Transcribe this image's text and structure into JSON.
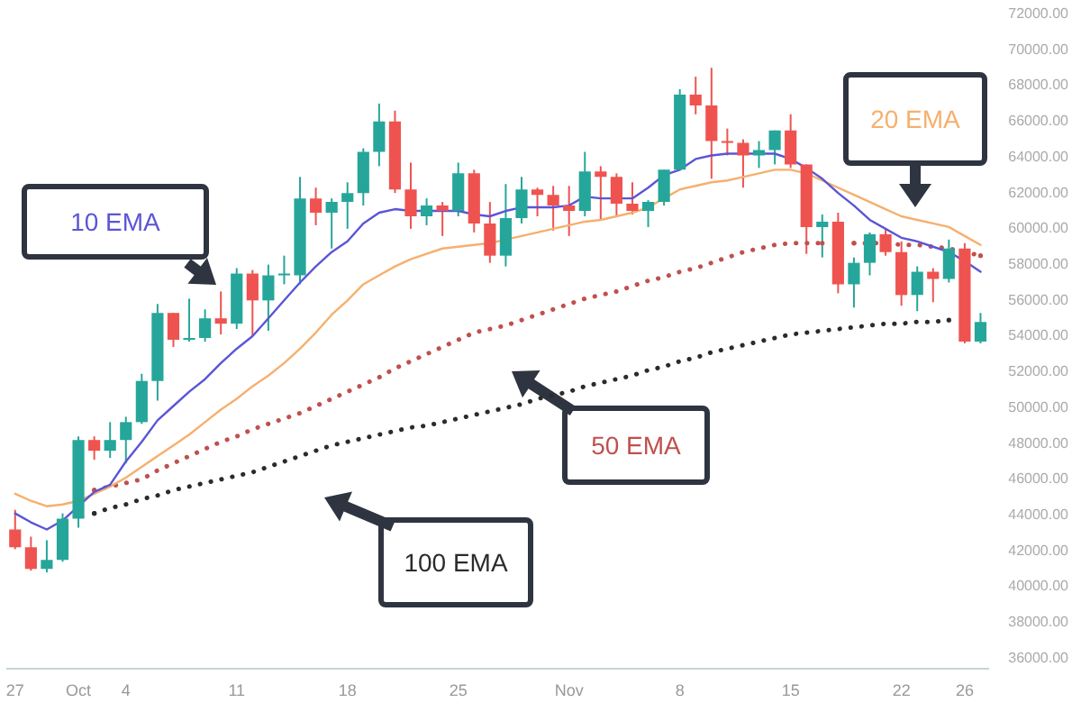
{
  "chart_data": {
    "type": "candlestick",
    "categories": [
      "27",
      null,
      null,
      null,
      "Oct",
      null,
      null,
      "4",
      null,
      null,
      null,
      null,
      null,
      null,
      "11",
      null,
      null,
      null,
      null,
      null,
      null,
      "18",
      null,
      null,
      null,
      null,
      null,
      null,
      "25",
      null,
      null,
      null,
      null,
      null,
      null,
      "Nov",
      null,
      null,
      null,
      null,
      null,
      null,
      "8",
      null,
      null,
      null,
      null,
      null,
      null,
      "15",
      null,
      null,
      null,
      null,
      null,
      null,
      "22",
      null,
      null,
      null,
      "26",
      null
    ],
    "ohlc": [
      [
        43200,
        44300,
        42100,
        42200
      ],
      [
        42200,
        42800,
        40900,
        41000
      ],
      [
        41000,
        42600,
        40800,
        41500
      ],
      [
        41500,
        44100,
        41400,
        43800
      ],
      [
        43800,
        48400,
        43300,
        48200
      ],
      [
        48200,
        48400,
        47100,
        47600
      ],
      [
        47600,
        49200,
        47200,
        48200
      ],
      [
        48200,
        49500,
        46900,
        49200
      ],
      [
        49200,
        51900,
        49100,
        51500
      ],
      [
        51500,
        55800,
        50400,
        55300
      ],
      [
        55300,
        55300,
        53400,
        53800
      ],
      [
        53800,
        56100,
        53700,
        53900
      ],
      [
        53900,
        55500,
        53700,
        55000
      ],
      [
        55000,
        56500,
        54100,
        54700
      ],
      [
        54700,
        57800,
        54400,
        57500
      ],
      [
        57500,
        57700,
        54000,
        56000
      ],
      [
        56000,
        58000,
        54300,
        57400
      ],
      [
        57400,
        58500,
        56900,
        57400
      ],
      [
        57400,
        62900,
        56900,
        61700
      ],
      [
        61700,
        62300,
        60200,
        60900
      ],
      [
        60900,
        61700,
        58900,
        61500
      ],
      [
        61500,
        62600,
        60000,
        62000
      ],
      [
        62000,
        64500,
        61300,
        64300
      ],
      [
        64300,
        67000,
        63500,
        66000
      ],
      [
        66000,
        66600,
        62000,
        62200
      ],
      [
        62200,
        63700,
        60000,
        60700
      ],
      [
        60700,
        61700,
        60200,
        61300
      ],
      [
        61300,
        61500,
        59600,
        61000
      ],
      [
        61000,
        63700,
        60700,
        63100
      ],
      [
        63100,
        63300,
        59800,
        60300
      ],
      [
        60300,
        61500,
        58100,
        58500
      ],
      [
        58500,
        62500,
        57900,
        60600
      ],
      [
        60600,
        62900,
        60300,
        62200
      ],
      [
        62200,
        62300,
        60700,
        61900
      ],
      [
        61900,
        62400,
        59900,
        61300
      ],
      [
        61300,
        62400,
        59600,
        61000
      ],
      [
        61000,
        64300,
        60700,
        63200
      ],
      [
        63200,
        63500,
        60500,
        62900
      ],
      [
        62900,
        63100,
        60700,
        61400
      ],
      [
        61400,
        62600,
        60800,
        61000
      ],
      [
        61000,
        61600,
        60100,
        61500
      ],
      [
        61500,
        63300,
        61300,
        63300
      ],
      [
        63300,
        67800,
        63300,
        67500
      ],
      [
        67500,
        68500,
        66400,
        66900
      ],
      [
        66900,
        69000,
        62800,
        64900
      ],
      [
        64900,
        65600,
        64100,
        64800
      ],
      [
        64800,
        65000,
        62300,
        64100
      ],
      [
        64100,
        64900,
        63400,
        64400
      ],
      [
        64400,
        65500,
        63600,
        65500
      ],
      [
        65500,
        66400,
        63400,
        63600
      ],
      [
        63600,
        63600,
        58600,
        60100
      ],
      [
        60100,
        60800,
        58400,
        60400
      ],
      [
        60400,
        60900,
        56400,
        56900
      ],
      [
        56900,
        58400,
        55600,
        58100
      ],
      [
        58100,
        59800,
        57400,
        59700
      ],
      [
        59700,
        60000,
        58500,
        58700
      ],
      [
        58700,
        59300,
        55700,
        56300
      ],
      [
        56300,
        57900,
        55400,
        57600
      ],
      [
        57600,
        57800,
        55900,
        57200
      ],
      [
        57200,
        59400,
        57000,
        58900
      ],
      [
        58900,
        59200,
        53600,
        53700
      ],
      [
        53700,
        55300,
        53600,
        54800
      ]
    ],
    "colors": [
      "#ef5350",
      "#ef5350",
      "#26a69a",
      "#26a69a",
      "#26a69a",
      "#ef5350",
      "#26a69a",
      "#26a69a",
      "#26a69a",
      "#26a69a",
      "#ef5350",
      "#26a69a",
      "#26a69a",
      "#ef5350",
      "#26a69a",
      "#ef5350",
      "#26a69a",
      "#26a69a",
      "#26a69a",
      "#ef5350",
      "#26a69a",
      "#26a69a",
      "#26a69a",
      "#26a69a",
      "#ef5350",
      "#ef5350",
      "#26a69a",
      "#ef5350",
      "#26a69a",
      "#ef5350",
      "#ef5350",
      "#26a69a",
      "#26a69a",
      "#ef5350",
      "#ef5350",
      "#ef5350",
      "#26a69a",
      "#ef5350",
      "#ef5350",
      "#ef5350",
      "#26a69a",
      "#26a69a",
      "#26a69a",
      "#ef5350",
      "#ef5350",
      "#ef5350",
      "#ef5350",
      "#26a69a",
      "#26a69a",
      "#ef5350",
      "#ef5350",
      "#26a69a",
      "#ef5350",
      "#26a69a",
      "#26a69a",
      "#ef5350",
      "#ef5350",
      "#26a69a",
      "#ef5350",
      "#26a69a",
      "#ef5350",
      "#26a69a"
    ],
    "series": [
      {
        "type": "line",
        "name": "10 EMA",
        "color": "#5b55d6",
        "line_style": "solid",
        "values": [
          44100,
          43600,
          43200,
          43700,
          44500,
          45300,
          45700,
          47000,
          48100,
          49300,
          50100,
          50900,
          51600,
          52500,
          53300,
          54000,
          55000,
          56000,
          57000,
          57900,
          58700,
          59300,
          60300,
          60900,
          61100,
          61000,
          61000,
          61000,
          61000,
          60800,
          60700,
          61000,
          61200,
          61200,
          61200,
          61300,
          61800,
          61700,
          61700,
          61700,
          62300,
          63000,
          63300,
          63900,
          64100,
          64200,
          64200,
          64200,
          64200,
          63900,
          63400,
          62800,
          62000,
          61300,
          60500,
          60000,
          59500,
          59300,
          59000,
          58700,
          58200,
          57600
        ]
      },
      {
        "type": "line",
        "name": "20 EMA",
        "color": "#f5b06e",
        "line_style": "solid",
        "values": [
          45200,
          44800,
          44500,
          44600,
          44800,
          45200,
          45600,
          46100,
          46700,
          47300,
          47900,
          48500,
          49200,
          49900,
          50500,
          51200,
          51800,
          52500,
          53300,
          54200,
          55200,
          56000,
          56900,
          57400,
          57900,
          58300,
          58600,
          58900,
          59000,
          59100,
          59200,
          59400,
          59600,
          59800,
          60000,
          60200,
          60400,
          60500,
          60700,
          60900,
          61200,
          61700,
          62200,
          62400,
          62600,
          62700,
          62900,
          63100,
          63300,
          63300,
          63100,
          62700,
          62300,
          61900,
          61500,
          61100,
          60700,
          60500,
          60300,
          60100,
          59600,
          59100
        ]
      },
      {
        "type": "line",
        "name": "50 EMA",
        "color": "#c0504d",
        "line_style": "dotted",
        "values": [
          null,
          null,
          null,
          null,
          null,
          45400,
          45600,
          45800,
          46000,
          46500,
          46900,
          47300,
          47700,
          48100,
          48400,
          48800,
          49100,
          49400,
          49700,
          50100,
          50500,
          50900,
          51300,
          51700,
          52200,
          52600,
          53000,
          53400,
          53800,
          54200,
          54400,
          54600,
          54900,
          55200,
          55500,
          55800,
          56100,
          56300,
          56500,
          56800,
          57100,
          57300,
          57600,
          57800,
          58100,
          58400,
          58700,
          58900,
          59100,
          59200,
          59200,
          59200,
          null,
          59200,
          59200,
          59200,
          59100,
          59100,
          59000,
          58900,
          58700,
          58500
        ]
      },
      {
        "type": "line",
        "name": "100 EMA",
        "color": "#2b2b2b",
        "line_style": "dotted",
        "values": [
          null,
          null,
          null,
          null,
          null,
          44100,
          44400,
          44600,
          44900,
          45100,
          45400,
          45600,
          45800,
          46000,
          46200,
          46400,
          46700,
          47000,
          47300,
          47600,
          47900,
          48100,
          48300,
          48500,
          48700,
          48900,
          49000,
          49200,
          49400,
          49600,
          49800,
          50000,
          50200,
          50500,
          50700,
          50900,
          51200,
          51400,
          51600,
          51800,
          52100,
          52300,
          52600,
          52800,
          53100,
          53300,
          53500,
          53700,
          53900,
          54100,
          54200,
          54300,
          54400,
          54500,
          54600,
          54700,
          54700,
          54800,
          54800,
          54900,
          null,
          null
        ]
      }
    ],
    "marker": "none",
    "ylim": [
      35400,
      72000
    ],
    "yticks": [
      {
        "value": 36000,
        "label": "36000.00"
      },
      {
        "value": 38000,
        "label": "38000.00"
      },
      {
        "value": 40000,
        "label": "40000.00"
      },
      {
        "value": 42000,
        "label": "42000.00"
      },
      {
        "value": 44000,
        "label": "44000.00"
      },
      {
        "value": 46000,
        "label": "46000.00"
      },
      {
        "value": 48000,
        "label": "48000.00"
      },
      {
        "value": 50000,
        "label": "50000.00"
      },
      {
        "value": 52000,
        "label": "52000.00"
      },
      {
        "value": 54000,
        "label": "54000.00"
      },
      {
        "value": 56000,
        "label": "56000.00"
      },
      {
        "value": 58000,
        "label": "58000.00"
      },
      {
        "value": 60000,
        "label": "60000.00"
      },
      {
        "value": 62000,
        "label": "62000.00"
      },
      {
        "value": 64000,
        "label": "64000.00"
      },
      {
        "value": 66000,
        "label": "66000.00"
      },
      {
        "value": 68000,
        "label": "68000.00"
      },
      {
        "value": 70000,
        "label": "70000.00"
      },
      {
        "value": 72000,
        "label": "72000.00"
      }
    ]
  }
}
